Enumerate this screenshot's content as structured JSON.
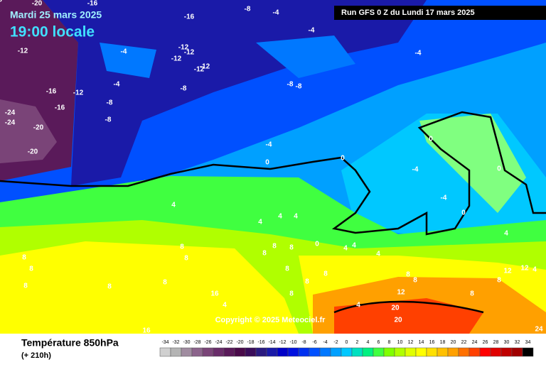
{
  "header": {
    "date": "Mardi 25 mars 2025",
    "time": "19:00 locale",
    "run": "Run GFS 0 Z du Lundi 17 mars 2025"
  },
  "map": {
    "copyright": "Copyright © 2025 Meteociel.fr",
    "contour_labels": [
      "-20",
      "-16",
      "-8",
      "-4",
      "-16",
      "-4",
      "-12",
      "-4",
      "-12",
      "-12",
      "-12",
      "-12",
      "-12",
      "-4",
      "-4",
      "-8",
      "-8",
      "-8",
      "-16",
      "-12",
      "-8",
      "-16",
      "-8",
      "-24",
      "-24",
      "-20",
      "-20",
      "-4",
      "0",
      "0",
      "0",
      "-4",
      "0",
      "-4",
      "0",
      "4",
      "4",
      "4",
      "4",
      "0",
      "4",
      "4",
      "4",
      "4",
      "8",
      "8",
      "8",
      "8",
      "8",
      "8",
      "8",
      "8",
      "8",
      "8",
      "8",
      "8",
      "8",
      "8",
      "8",
      "8",
      "12",
      "12",
      "4",
      "8",
      "8",
      "12",
      "16",
      "4",
      "4",
      "20",
      "20",
      "24",
      "16",
      "8"
    ]
  },
  "legend": {
    "title": "Température 850hPa",
    "subtitle": "(+ 210h)",
    "ticks": [
      -34,
      -32,
      -30,
      -28,
      -26,
      -24,
      -22,
      -20,
      -18,
      -16,
      -14,
      -12,
      -10,
      -8,
      -6,
      -4,
      -2,
      0,
      2,
      4,
      6,
      8,
      10,
      12,
      14,
      16,
      18,
      20,
      22,
      24,
      26,
      28,
      30,
      32,
      34
    ],
    "colors": [
      "#d0d0d0",
      "#b4b4b4",
      "#a08ca0",
      "#8c648c",
      "#7a4478",
      "#6a2c6a",
      "#5a1a5a",
      "#4a0a4a",
      "#3a0c5a",
      "#2a1a80",
      "#1a1aa8",
      "#0000c8",
      "#0010e0",
      "#0030f0",
      "#0050ff",
      "#0078ff",
      "#00a0ff",
      "#00c8ff",
      "#00e0c0",
      "#00f080",
      "#40ff40",
      "#80ff00",
      "#b0ff00",
      "#e0ff00",
      "#ffff00",
      "#ffe000",
      "#ffc000",
      "#ffa000",
      "#ff7000",
      "#ff4000",
      "#ff0000",
      "#e00000",
      "#c00000",
      "#a00000",
      "#000000"
    ]
  }
}
